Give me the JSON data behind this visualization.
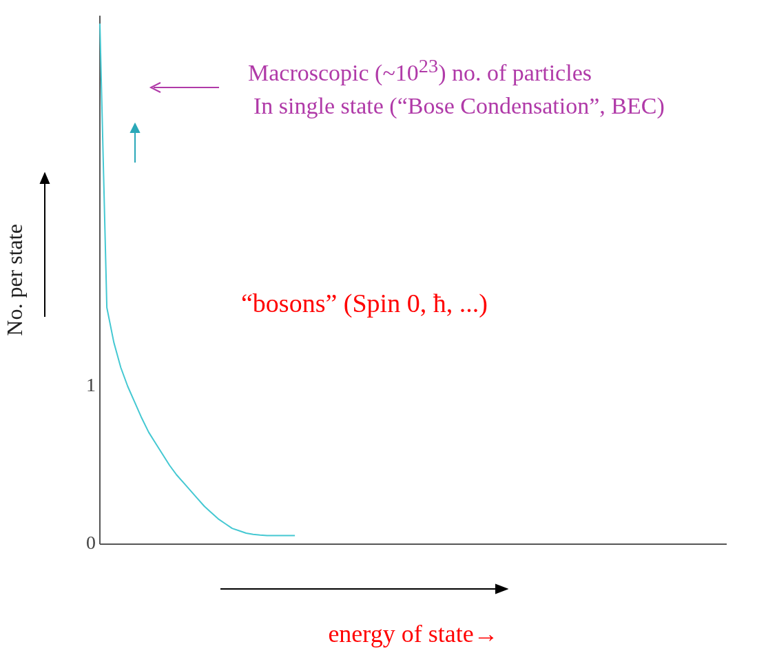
{
  "chart_data": {
    "type": "line",
    "xlabel": "energy of state→",
    "ylabel": "No. per state",
    "categories": [
      null,
      null,
      null,
      null,
      null,
      null,
      null,
      null,
      null,
      null,
      null,
      null,
      null,
      null,
      null,
      null,
      null,
      null,
      null,
      null,
      null,
      null,
      null,
      null,
      null,
      null,
      null,
      null,
      null,
      null,
      null,
      null,
      null,
      null,
      null,
      null,
      null,
      null,
      null,
      null,
      null,
      null,
      null,
      null,
      null,
      null,
      null,
      null,
      null,
      null,
      null,
      null,
      null,
      null,
      null,
      null,
      null,
      null,
      null,
      null,
      null,
      null,
      null,
      null,
      null,
      null,
      null,
      null,
      null,
      null,
      null,
      null,
      null,
      null,
      null,
      null,
      null,
      null,
      null,
      null,
      null,
      null,
      null,
      null,
      null,
      null,
      null,
      null,
      null,
      null,
      null
    ],
    "series": [
      {
        "color": "#44c8d2",
        "values": [
          3.3,
          1.5,
          1.28,
          1.12,
          1.0,
          0.9,
          0.8,
          0.71,
          0.64,
          0.57,
          0.5,
          0.44,
          0.39,
          0.34,
          0.29,
          0.24,
          0.2,
          0.16,
          0.13,
          0.1,
          0.085,
          0.07,
          0.062,
          0.058,
          0.055,
          0.055,
          0.055,
          0.055,
          0.055,
          null,
          null,
          null,
          null,
          null,
          null,
          null,
          null,
          null,
          null,
          null,
          null,
          null,
          null,
          null,
          null,
          null,
          null,
          null,
          null,
          null,
          null,
          null,
          null,
          null,
          null,
          null,
          null,
          null,
          null,
          null,
          null,
          null,
          null,
          null,
          null,
          null,
          null,
          null,
          null,
          null,
          null,
          null,
          null,
          null,
          null,
          null,
          null,
          null,
          null,
          null,
          null,
          null,
          null,
          null,
          null,
          null,
          null,
          null,
          null,
          null,
          null
        ]
      }
    ],
    "ylim": [
      0,
      3.35
    ],
    "yticks": [
      0,
      1
    ],
    "tick_labels": "y",
    "grid": false,
    "legend": false,
    "marker": "none",
    "line_style": "solid",
    "annotations": [
      "Macroscopic (~10$^{23}$) no. of particles",
      "In single state (“Bose Condensation”, BEC)",
      "“bosons” (Spin 0, ħ, ...)"
    ]
  }
}
